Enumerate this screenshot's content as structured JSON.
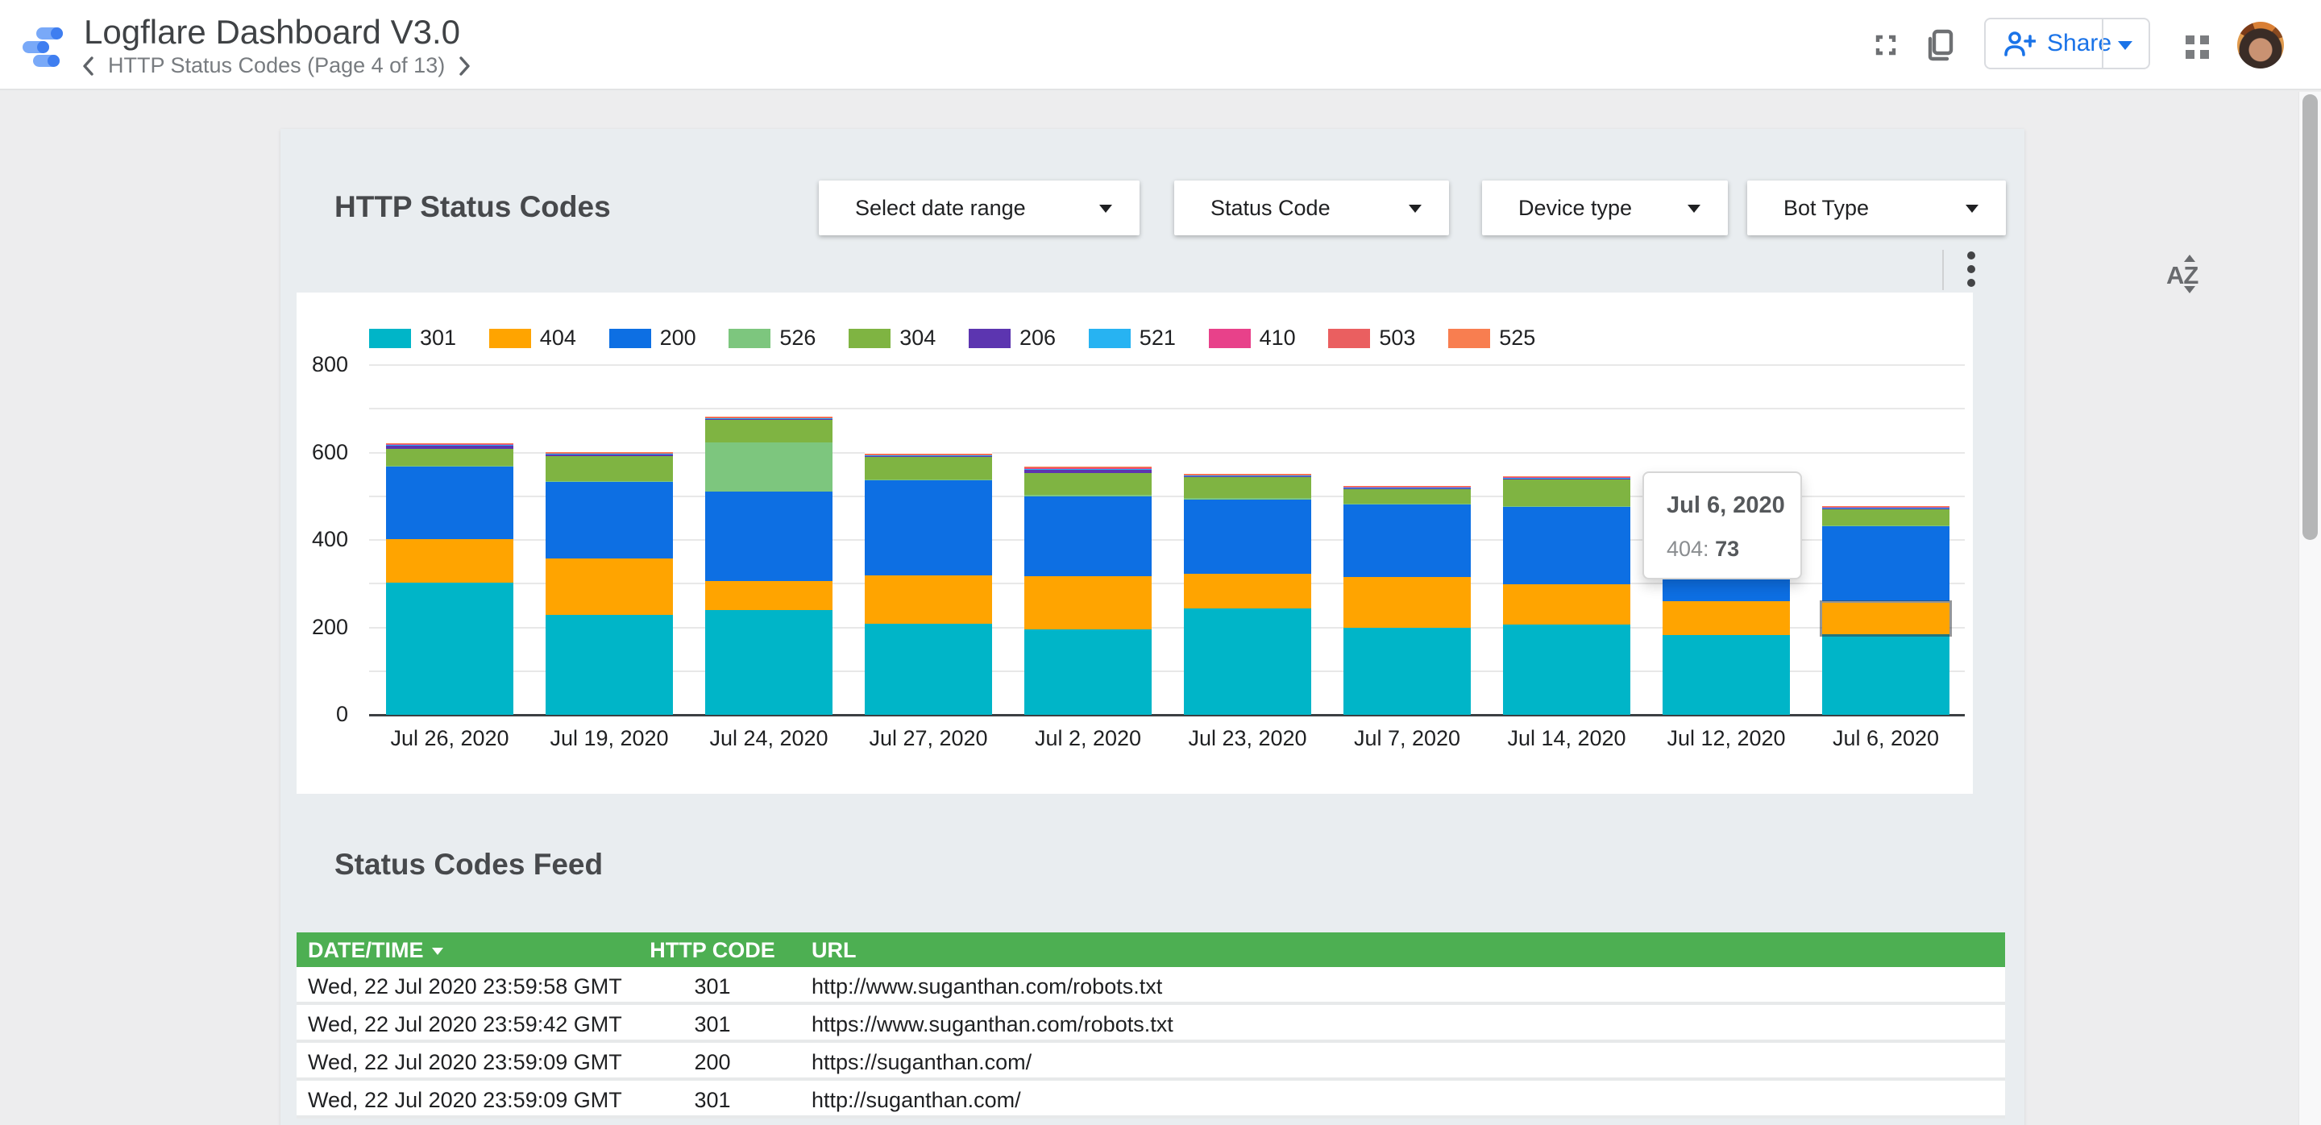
{
  "header": {
    "title": "Logflare Dashboard V3.0",
    "breadcrumb": "HTTP Status Codes (Page 4 of 13)",
    "share_label": "Share"
  },
  "filters": {
    "items": [
      {
        "label": "Select date range"
      },
      {
        "label": "Status Code"
      },
      {
        "label": "Device type"
      },
      {
        "label": "Bot Type"
      }
    ]
  },
  "sections": {
    "chart_title": "HTTP Status Codes",
    "feed_title": "Status Codes Feed"
  },
  "chart_data": {
    "type": "bar",
    "stacked": true,
    "title": "HTTP Status Codes by day",
    "x": [
      "Jul 26, 2020",
      "Jul 19, 2020",
      "Jul 24, 2020",
      "Jul 27, 2020",
      "Jul 2, 2020",
      "Jul 23, 2020",
      "Jul 7, 2020",
      "Jul 14, 2020",
      "Jul 12, 2020",
      "Jul 6, 2020"
    ],
    "series": [
      {
        "name": "301",
        "color": "#00b5c8",
        "values": [
          302,
          229,
          239,
          209,
          195,
          244,
          199,
          207,
          183,
          184
        ]
      },
      {
        "name": "404",
        "color": "#ffa400",
        "values": [
          100,
          129,
          67,
          109,
          122,
          79,
          116,
          92,
          77,
          73
        ]
      },
      {
        "name": "200",
        "color": "#0d6fe3",
        "values": [
          165,
          174,
          204,
          218,
          183,
          170,
          166,
          176,
          230,
          175
        ]
      },
      {
        "name": "526",
        "color": "#7dc67e",
        "values": [
          3,
          3,
          113,
          3,
          3,
          3,
          2,
          2,
          2,
          2
        ]
      },
      {
        "name": "304",
        "color": "#7fb442",
        "values": [
          38,
          57,
          52,
          51,
          50,
          47,
          34,
          62,
          38,
          36
        ]
      },
      {
        "name": "206",
        "color": "#5c35b0",
        "values": [
          8,
          3,
          2,
          3,
          8,
          3,
          2,
          2,
          2,
          2
        ]
      },
      {
        "name": "521",
        "color": "#27b3f2",
        "values": [
          2,
          2,
          1,
          1,
          2,
          1,
          1,
          1,
          1,
          1
        ]
      },
      {
        "name": "410",
        "color": "#e8418a",
        "values": [
          2,
          2,
          2,
          1,
          2,
          2,
          2,
          2,
          2,
          2
        ]
      },
      {
        "name": "503",
        "color": "#ea5f60",
        "values": [
          1,
          1,
          1,
          1,
          1,
          1,
          1,
          1,
          1,
          2
        ]
      },
      {
        "name": "525",
        "color": "#f87e50",
        "values": [
          1,
          1,
          1,
          1,
          1,
          1,
          1,
          1,
          1,
          1
        ]
      }
    ],
    "ylim": [
      0,
      800
    ],
    "yticks": [
      0,
      200,
      400,
      600,
      800
    ],
    "grid_step": 100,
    "legend_position": "top",
    "xlabel": "",
    "ylabel": ""
  },
  "tooltip": {
    "date": "Jul 6, 2020",
    "series_label": "404:",
    "value": "73",
    "anchor_series": "404",
    "anchor_x": "Jul 6, 2020"
  },
  "table": {
    "headers": [
      "DATE/TIME",
      "HTTP CODE",
      "URL"
    ],
    "sort_column": "DATE/TIME",
    "rows": [
      [
        "Wed, 22 Jul 2020 23:59:58 GMT",
        "301",
        "http://www.suganthan.com/robots.txt"
      ],
      [
        "Wed, 22 Jul 2020 23:59:42 GMT",
        "301",
        "https://www.suganthan.com/robots.txt"
      ],
      [
        "Wed, 22 Jul 2020 23:59:09 GMT",
        "200",
        "https://suganthan.com/"
      ],
      [
        "Wed, 22 Jul 2020 23:59:09 GMT",
        "301",
        "http://suganthan.com/"
      ]
    ]
  },
  "ui": {
    "accent_blue": "#1a73e8",
    "table_header_green": "#4daf52",
    "card_bg": "#e9edf0",
    "page_bg": "#ededee",
    "icon_gray": "#6e7073"
  }
}
